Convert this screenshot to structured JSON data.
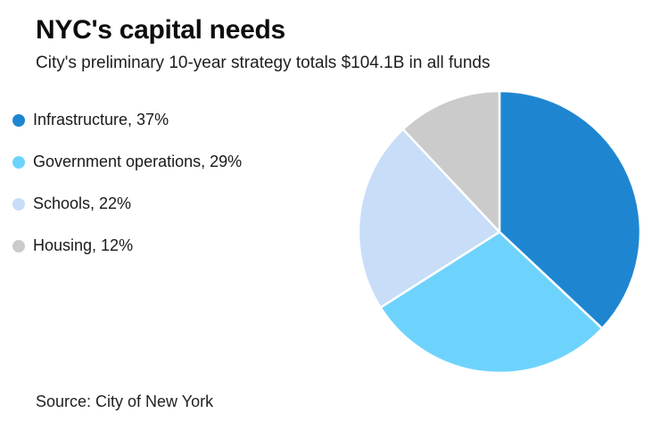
{
  "header": {
    "title": "NYC's capital needs",
    "subtitle": "City's preliminary 10-year strategy totals $104.1B in all funds"
  },
  "legend": {
    "items": [
      {
        "label": "Infrastructure, 37%"
      },
      {
        "label": "Government operations, 29%"
      },
      {
        "label": "Schools, 22%"
      },
      {
        "label": "Housing, 12%"
      }
    ]
  },
  "source": {
    "text": "Source: City of New York"
  },
  "chart_data": {
    "type": "pie",
    "title": "NYC's capital needs",
    "subtitle": "City's preliminary 10-year strategy totals $104.1B in all funds",
    "labels": [
      "Infrastructure",
      "Government operations",
      "Schools",
      "Housing"
    ],
    "values": [
      37,
      29,
      22,
      12
    ],
    "unit": "percent",
    "colors": [
      "#1e86d1",
      "#6ed3fc",
      "#c7ddf8",
      "#cbcbcb"
    ],
    "start_angle_deg": 0,
    "direction": "clockwise",
    "legend_position": "left",
    "slice_divider_color": "#ffffff",
    "source": "Source: City of New York"
  }
}
